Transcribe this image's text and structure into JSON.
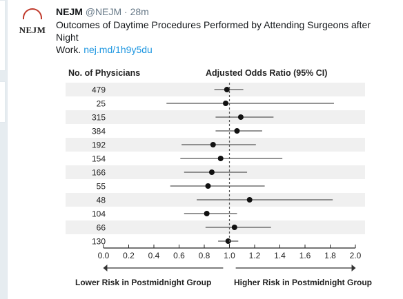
{
  "tweet": {
    "name": "NEJM",
    "handle": "@NEJM",
    "separator": "·",
    "time": "28m",
    "avatar_text": "NEJM",
    "text_line1": "Outcomes of Daytime Procedures Performed by Attending Surgeons after Night",
    "text_line2": "Work.",
    "link": "nej.md/1h9y5du"
  },
  "chart_data": {
    "type": "scatter",
    "left_header": "No. of Physicians",
    "right_header": "Adjusted Odds Ratio (95% CI)",
    "xlim": [
      0.0,
      2.0
    ],
    "xticks": [
      "0.0",
      "0.2",
      "0.4",
      "0.6",
      "0.8",
      "1.0",
      "1.2",
      "1.4",
      "1.6",
      "1.8",
      "2.0"
    ],
    "reference_line": 1.0,
    "lower_label": "Lower Risk in Postmidnight Group",
    "higher_label": "Higher Risk in Postmidnight Group",
    "rows": [
      {
        "n": "479",
        "or": 0.98,
        "lo": 0.88,
        "hi": 1.11
      },
      {
        "n": "25",
        "or": 0.97,
        "lo": 0.5,
        "hi": 1.83
      },
      {
        "n": "315",
        "or": 1.09,
        "lo": 0.89,
        "hi": 1.35
      },
      {
        "n": "384",
        "or": 1.06,
        "lo": 0.89,
        "hi": 1.26
      },
      {
        "n": "192",
        "or": 0.87,
        "lo": 0.62,
        "hi": 1.21
      },
      {
        "n": "154",
        "or": 0.93,
        "lo": 0.61,
        "hi": 1.42
      },
      {
        "n": "166",
        "or": 0.86,
        "lo": 0.64,
        "hi": 1.14
      },
      {
        "n": "55",
        "or": 0.83,
        "lo": 0.53,
        "hi": 1.28
      },
      {
        "n": "48",
        "or": 1.16,
        "lo": 0.74,
        "hi": 1.82
      },
      {
        "n": "104",
        "or": 0.82,
        "lo": 0.64,
        "hi": 1.06
      },
      {
        "n": "66",
        "or": 1.04,
        "lo": 0.81,
        "hi": 1.33
      },
      {
        "n": "130",
        "or": 0.99,
        "lo": 0.91,
        "hi": 1.07
      }
    ]
  }
}
